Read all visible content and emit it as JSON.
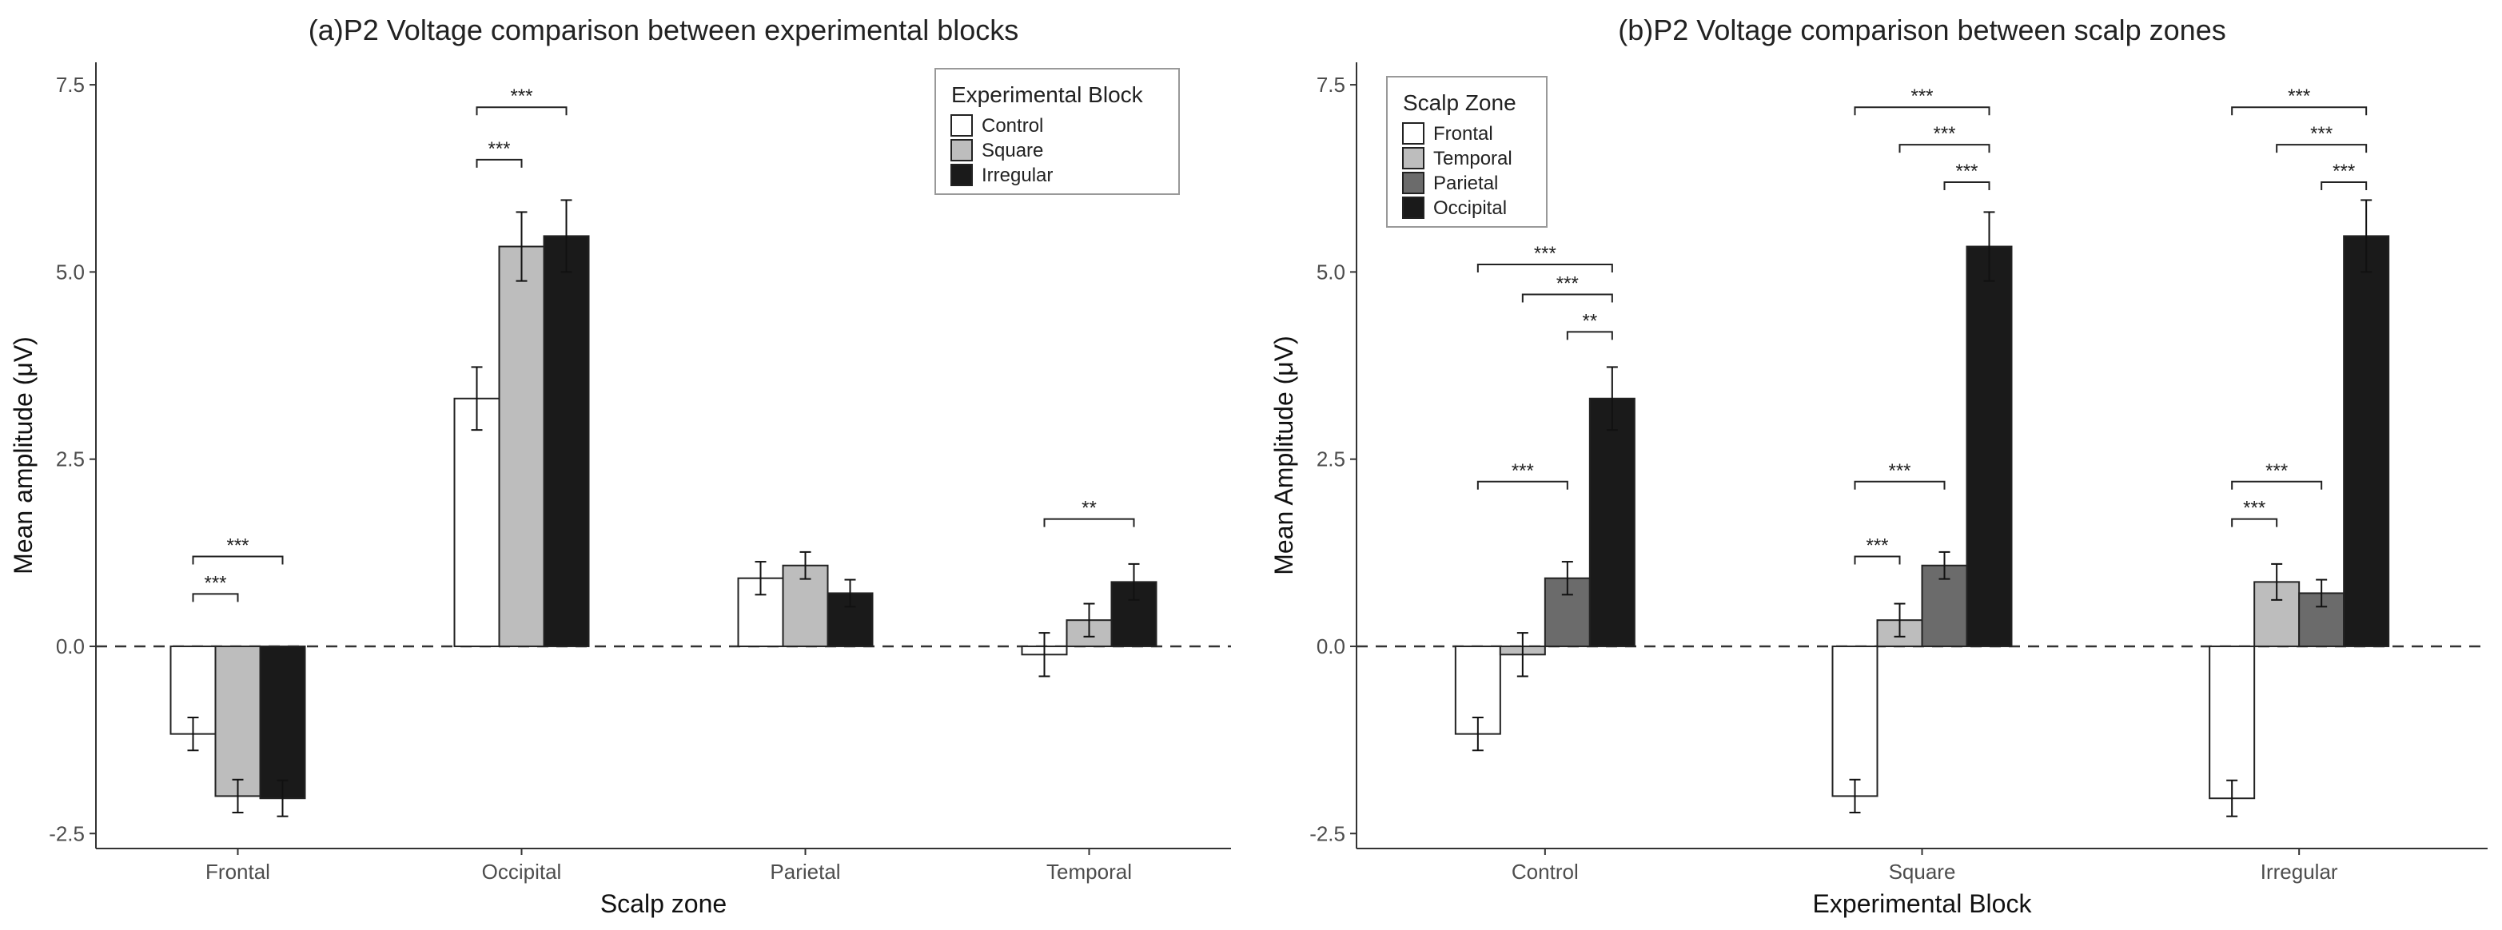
{
  "chart_data": [
    {
      "type": "bar",
      "title": "(a)P2 Voltage comparison between experimental blocks",
      "xlabel": "Scalp zone",
      "ylabel": "Mean amplitude (μV)",
      "ylim": [
        -2.7,
        7.8
      ],
      "yticks": [
        -2.5,
        0.0,
        2.5,
        5.0,
        7.5
      ],
      "ytick_labels": [
        "-2.5",
        "0.0",
        "2.5",
        "5.0",
        "7.5"
      ],
      "reference_line": 0,
      "categories": [
        "Frontal",
        "Occipital",
        "Parietal",
        "Temporal"
      ],
      "legend": {
        "title": "Experimental Block",
        "placement": "top-right"
      },
      "series": [
        {
          "name": "Control",
          "color": "#ffffff",
          "values": [
            -1.17,
            3.31,
            0.91,
            -0.11
          ],
          "errors": [
            0.22,
            0.42,
            0.22,
            0.29
          ]
        },
        {
          "name": "Square",
          "color": "#bdbdbd",
          "values": [
            -2.0,
            5.34,
            1.08,
            0.35
          ],
          "errors": [
            0.22,
            0.46,
            0.18,
            0.22
          ]
        },
        {
          "name": "Irregular",
          "color": "#1a1a1a",
          "values": [
            -2.03,
            5.48,
            0.71,
            0.86
          ],
          "errors": [
            0.24,
            0.48,
            0.18,
            0.24
          ]
        }
      ],
      "significance": [
        {
          "category": 0,
          "from": 0,
          "to": 1,
          "y": 0.7,
          "label": "***"
        },
        {
          "category": 0,
          "from": 0,
          "to": 2,
          "y": 1.2,
          "label": "***"
        },
        {
          "category": 1,
          "from": 0,
          "to": 1,
          "y": 6.5,
          "label": "***"
        },
        {
          "category": 1,
          "from": 0,
          "to": 2,
          "y": 7.2,
          "label": "***"
        },
        {
          "category": 3,
          "from": 0,
          "to": 2,
          "y": 1.7,
          "label": "**"
        }
      ]
    },
    {
      "type": "bar",
      "title": "(b)P2 Voltage comparison between scalp zones",
      "xlabel": "Experimental Block",
      "ylabel": "Mean Amplitude (μV)",
      "ylim": [
        -2.7,
        7.8
      ],
      "yticks": [
        -2.5,
        0.0,
        2.5,
        5.0,
        7.5
      ],
      "ytick_labels": [
        "-2.5",
        "0.0",
        "2.5",
        "5.0",
        "7.5"
      ],
      "reference_line": 0,
      "categories": [
        "Control",
        "Square",
        "Irregular"
      ],
      "legend": {
        "title": "Scalp Zone",
        "placement": "top-left"
      },
      "series": [
        {
          "name": "Frontal",
          "color": "#ffffff",
          "values": [
            -1.17,
            -2.0,
            -2.03
          ],
          "errors": [
            0.22,
            0.22,
            0.24
          ]
        },
        {
          "name": "Temporal",
          "color": "#bdbdbd",
          "values": [
            -0.11,
            0.35,
            0.86
          ],
          "errors": [
            0.29,
            0.22,
            0.24
          ]
        },
        {
          "name": "Parietal",
          "color": "#6b6b6b",
          "values": [
            0.91,
            1.08,
            0.71
          ],
          "errors": [
            0.22,
            0.18,
            0.18
          ]
        },
        {
          "name": "Occipital",
          "color": "#1a1a1a",
          "values": [
            3.31,
            5.34,
            5.48
          ],
          "errors": [
            0.42,
            0.46,
            0.48
          ]
        }
      ],
      "significance": [
        {
          "category": 0,
          "from": 0,
          "to": 3,
          "y": 5.1,
          "label": "***"
        },
        {
          "category": 0,
          "from": 1,
          "to": 3,
          "y": 4.7,
          "label": "***"
        },
        {
          "category": 0,
          "from": 2,
          "to": 3,
          "y": 4.2,
          "label": "**"
        },
        {
          "category": 0,
          "from": 0,
          "to": 2,
          "y": 2.2,
          "label": "***"
        },
        {
          "category": 1,
          "from": 0,
          "to": 3,
          "y": 7.2,
          "label": "***"
        },
        {
          "category": 1,
          "from": 1,
          "to": 3,
          "y": 6.7,
          "label": "***"
        },
        {
          "category": 1,
          "from": 2,
          "to": 3,
          "y": 6.2,
          "label": "***"
        },
        {
          "category": 1,
          "from": 0,
          "to": 2,
          "y": 2.2,
          "label": "***"
        },
        {
          "category": 1,
          "from": 0,
          "to": 1,
          "y": 1.2,
          "label": "***"
        },
        {
          "category": 2,
          "from": 0,
          "to": 3,
          "y": 7.2,
          "label": "***"
        },
        {
          "category": 2,
          "from": 1,
          "to": 3,
          "y": 6.7,
          "label": "***"
        },
        {
          "category": 2,
          "from": 2,
          "to": 3,
          "y": 6.2,
          "label": "***"
        },
        {
          "category": 2,
          "from": 0,
          "to": 2,
          "y": 2.2,
          "label": "***"
        },
        {
          "category": 2,
          "from": 0,
          "to": 1,
          "y": 1.7,
          "label": "***"
        }
      ]
    }
  ]
}
